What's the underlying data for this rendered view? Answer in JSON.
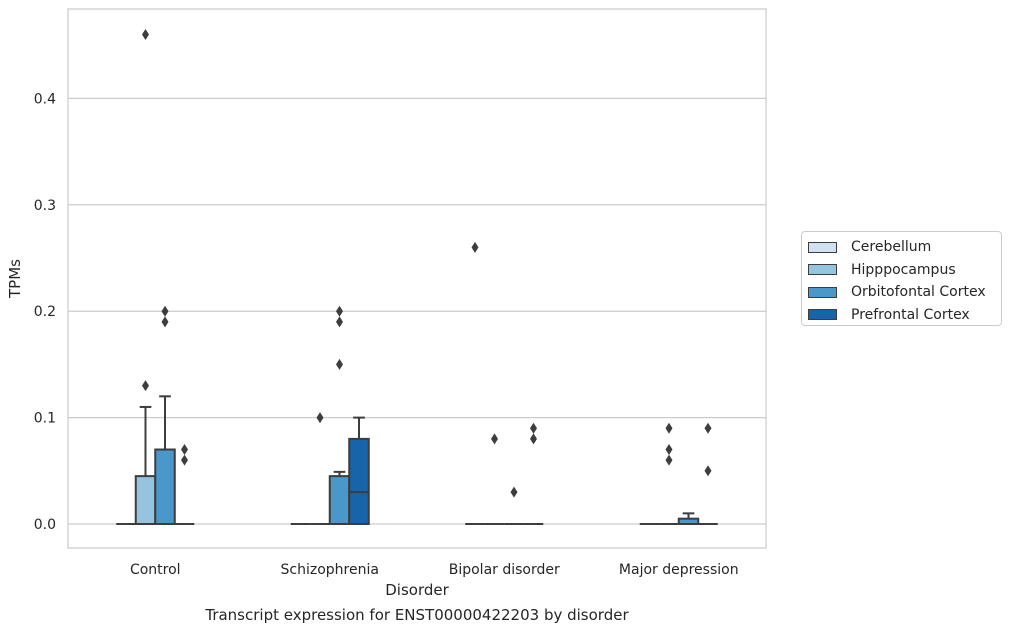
{
  "chart_data": {
    "type": "box",
    "title": "",
    "caption": "Transcript expression for ENST00000422203 by disorder",
    "xlabel": "Disorder",
    "ylabel": "TPMs",
    "ylim": [
      -0.022,
      0.485
    ],
    "yticks": [
      0.0,
      0.1,
      0.2,
      0.3,
      0.4
    ],
    "ytick_labels": [
      "0.0",
      "0.1",
      "0.2",
      "0.3",
      "0.4"
    ],
    "grid": true,
    "legend_position": "right",
    "categories": [
      "Control",
      "Schizophrenia",
      "Bipolar disorder",
      "Major depression"
    ],
    "series": [
      {
        "name": "Cerebellum",
        "color": "#d0e1f2",
        "boxes": [
          {
            "category": "Control",
            "min": 0,
            "q1": 0,
            "median": 0,
            "q3": 0,
            "max": 0,
            "outliers": []
          },
          {
            "category": "Schizophrenia",
            "min": 0,
            "q1": 0,
            "median": 0,
            "q3": 0,
            "max": 0,
            "outliers": []
          },
          {
            "category": "Bipolar disorder",
            "min": 0,
            "q1": 0,
            "median": 0,
            "q3": 0,
            "max": 0,
            "outliers": [
              0.26
            ]
          },
          {
            "category": "Major depression",
            "min": 0,
            "q1": 0,
            "median": 0,
            "q3": 0,
            "max": 0,
            "outliers": []
          }
        ]
      },
      {
        "name": "Hipppocampus",
        "color": "#94c4df",
        "boxes": [
          {
            "category": "Control",
            "min": 0,
            "q1": 0,
            "median": 0,
            "q3": 0.045,
            "max": 0.11,
            "outliers": [
              0.13,
              0.46
            ]
          },
          {
            "category": "Schizophrenia",
            "min": 0,
            "q1": 0,
            "median": 0,
            "q3": 0,
            "max": 0,
            "outliers": [
              0.1
            ]
          },
          {
            "category": "Bipolar disorder",
            "min": 0,
            "q1": 0,
            "median": 0,
            "q3": 0,
            "max": 0,
            "outliers": [
              0.08
            ]
          },
          {
            "category": "Major depression",
            "min": 0,
            "q1": 0,
            "median": 0,
            "q3": 0,
            "max": 0,
            "outliers": [
              0.06,
              0.07,
              0.09
            ]
          }
        ]
      },
      {
        "name": "Orbitofontal Cortex",
        "color": "#4a98c9",
        "boxes": [
          {
            "category": "Control",
            "min": 0,
            "q1": 0,
            "median": 0,
            "q3": 0.07,
            "max": 0.12,
            "outliers": [
              0.19,
              0.2
            ]
          },
          {
            "category": "Schizophrenia",
            "min": 0,
            "q1": 0,
            "median": 0,
            "q3": 0.045,
            "max": 0.049,
            "outliers": [
              0.15,
              0.19,
              0.2
            ]
          },
          {
            "category": "Bipolar disorder",
            "min": 0,
            "q1": 0,
            "median": 0,
            "q3": 0,
            "max": 0,
            "outliers": [
              0.03
            ]
          },
          {
            "category": "Major depression",
            "min": 0,
            "q1": 0,
            "median": 0,
            "q3": 0.005,
            "max": 0.01,
            "outliers": []
          }
        ]
      },
      {
        "name": "Prefrontal Cortex",
        "color": "#1764ab",
        "boxes": [
          {
            "category": "Control",
            "min": 0,
            "q1": 0,
            "median": 0,
            "q3": 0,
            "max": 0,
            "outliers": [
              0.06,
              0.07
            ]
          },
          {
            "category": "Schizophrenia",
            "min": 0,
            "q1": 0,
            "median": 0.03,
            "q3": 0.08,
            "max": 0.1,
            "outliers": []
          },
          {
            "category": "Bipolar disorder",
            "min": 0,
            "q1": 0,
            "median": 0,
            "q3": 0,
            "max": 0,
            "outliers": [
              0.08,
              0.09
            ]
          },
          {
            "category": "Major depression",
            "min": 0,
            "q1": 0,
            "median": 0,
            "q3": 0,
            "max": 0,
            "outliers": [
              0.05,
              0.09
            ]
          }
        ]
      }
    ]
  }
}
